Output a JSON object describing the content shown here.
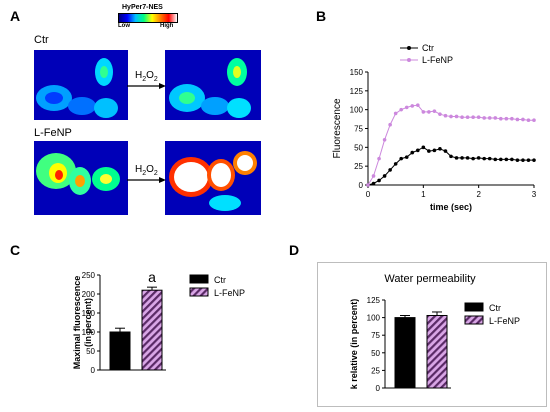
{
  "panels": {
    "A": {
      "letter": "A",
      "colorbar_title": "HyPer7-NES",
      "colorbar_low": "Low",
      "colorbar_high": "High",
      "row1_label": "Ctr",
      "row2_label": "L-FeNP",
      "treatment_main": "H",
      "treatment_sub": "2",
      "treatment_tail": "O",
      "treatment_sub2": "2"
    },
    "B": {
      "letter": "B"
    },
    "C": {
      "letter": "C",
      "significance": "a"
    },
    "D": {
      "letter": "D",
      "title": "Water permeability"
    }
  },
  "chart_data": [
    {
      "id": "B",
      "type": "line",
      "xlabel": "time (sec)",
      "ylabel": "Fluorescence",
      "xlim": [
        0,
        3
      ],
      "ylim": [
        0,
        150
      ],
      "xticks": [
        0,
        1,
        2,
        3
      ],
      "yticks": [
        0,
        25,
        50,
        75,
        100,
        125,
        150
      ],
      "legend_position": "top-left",
      "series": [
        {
          "name": "Ctr",
          "color": "#000000",
          "x": [
            0,
            0.1,
            0.2,
            0.3,
            0.4,
            0.5,
            0.6,
            0.7,
            0.8,
            0.9,
            1.0,
            1.1,
            1.2,
            1.3,
            1.4,
            1.5,
            1.6,
            1.7,
            1.8,
            1.9,
            2.0,
            2.1,
            2.2,
            2.3,
            2.4,
            2.5,
            2.6,
            2.7,
            2.8,
            2.9,
            3.0
          ],
          "y": [
            0,
            2,
            6,
            12,
            20,
            28,
            35,
            37,
            43,
            46,
            50,
            45,
            46,
            48,
            45,
            38,
            36,
            36,
            36,
            35,
            36,
            35,
            35,
            34,
            34,
            34,
            34,
            33,
            33,
            33,
            33
          ]
        },
        {
          "name": "L-FeNP",
          "color": "#cc88dd",
          "x": [
            0,
            0.1,
            0.2,
            0.3,
            0.4,
            0.5,
            0.6,
            0.7,
            0.8,
            0.9,
            1.0,
            1.1,
            1.2,
            1.3,
            1.4,
            1.5,
            1.6,
            1.7,
            1.8,
            1.9,
            2.0,
            2.1,
            2.2,
            2.3,
            2.4,
            2.5,
            2.6,
            2.7,
            2.8,
            2.9,
            3.0
          ],
          "y": [
            0,
            12,
            35,
            60,
            80,
            95,
            100,
            103,
            105,
            106,
            97,
            97,
            98,
            94,
            92,
            91,
            91,
            90,
            90,
            90,
            90,
            89,
            89,
            89,
            88,
            88,
            88,
            87,
            87,
            86,
            86
          ]
        }
      ]
    },
    {
      "id": "C",
      "type": "bar",
      "ylabel": "Maximal fluorescence\n(in percent)",
      "ylim": [
        0,
        250
      ],
      "yticks": [
        0,
        50,
        100,
        150,
        200,
        250
      ],
      "categories": [
        "Ctr",
        "L-FeNP"
      ],
      "values": [
        100,
        210
      ],
      "errors": [
        10,
        8
      ],
      "legend_position": "right",
      "series": [
        {
          "name": "Ctr",
          "fill": "solid-black"
        },
        {
          "name": "L-FeNP",
          "fill": "hatched-purple"
        }
      ]
    },
    {
      "id": "D",
      "type": "bar",
      "title": "Water permeability",
      "ylabel": "k relative (in percent)",
      "ylim": [
        0,
        125
      ],
      "yticks": [
        0,
        25,
        50,
        75,
        100,
        125
      ],
      "categories": [
        "Ctr",
        "L-FeNP"
      ],
      "values": [
        100,
        103
      ],
      "errors": [
        3,
        5
      ],
      "legend_position": "right",
      "series": [
        {
          "name": "Ctr",
          "fill": "solid-black"
        },
        {
          "name": "L-FeNP",
          "fill": "hatched-purple"
        }
      ]
    }
  ]
}
